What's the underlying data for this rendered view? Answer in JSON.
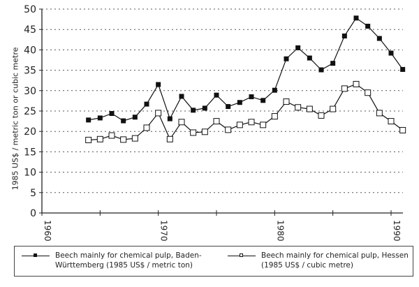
{
  "chart_data": {
    "type": "line",
    "title": "",
    "xlabel": "",
    "ylabel": "1985 US$ / metric ton or cubic metre",
    "xlim": [
      1960,
      1991
    ],
    "ylim": [
      0,
      50
    ],
    "x_ticks": [
      1960,
      1965,
      1970,
      1975,
      1980,
      1985,
      1990
    ],
    "x_tick_labels": [
      "1960",
      "",
      "1970",
      "",
      "1980",
      "",
      "1990"
    ],
    "y_ticks": [
      0,
      5,
      10,
      15,
      20,
      25,
      30,
      35,
      40,
      45,
      50
    ],
    "grid": "horizontal dotted",
    "legend_position": "bottom (boxed)",
    "x": [
      1964,
      1965,
      1966,
      1967,
      1968,
      1969,
      1970,
      1971,
      1972,
      1973,
      1974,
      1975,
      1976,
      1977,
      1978,
      1979,
      1980,
      1981,
      1982,
      1983,
      1984,
      1985,
      1986,
      1987,
      1988,
      1989,
      1990,
      1991
    ],
    "series": [
      {
        "name": "Beech mainly for chemical pulp, Baden-Württemberg (1985 US$ / metric ton)",
        "marker": "filled-square",
        "values": [
          22.8,
          23.3,
          24.4,
          22.6,
          23.5,
          26.7,
          31.5,
          23.1,
          28.6,
          25.2,
          25.7,
          28.9,
          26.1,
          27.1,
          28.5,
          27.6,
          30.1,
          37.8,
          40.5,
          38.0,
          35.1,
          36.7,
          43.4,
          47.8,
          45.8,
          42.8,
          39.2,
          35.2
        ]
      },
      {
        "name": "Beech mainly for chemical pulp, Hessen (1985 US$ / cubic metre)",
        "marker": "open-square",
        "values": [
          17.9,
          18.1,
          19.0,
          18.0,
          18.3,
          20.9,
          24.5,
          18.1,
          22.3,
          19.7,
          19.9,
          22.5,
          20.4,
          21.6,
          22.3,
          21.6,
          23.7,
          27.3,
          25.9,
          25.5,
          23.9,
          25.5,
          30.5,
          31.6,
          29.5,
          24.5,
          22.5,
          20.3
        ]
      }
    ]
  },
  "legend": {
    "items": [
      {
        "label_line1": "Beech mainly for chemical pulp, Baden-",
        "label_line2": "Württemberg (1985 US$ / metric ton)"
      },
      {
        "label_line1": "Beech mainly for chemical pulp, Hessen",
        "label_line2": "(1985 US$ / cubic metre)"
      }
    ]
  },
  "colors": {
    "line": "#111111",
    "grid": "#555555",
    "background": "#ffffff"
  }
}
